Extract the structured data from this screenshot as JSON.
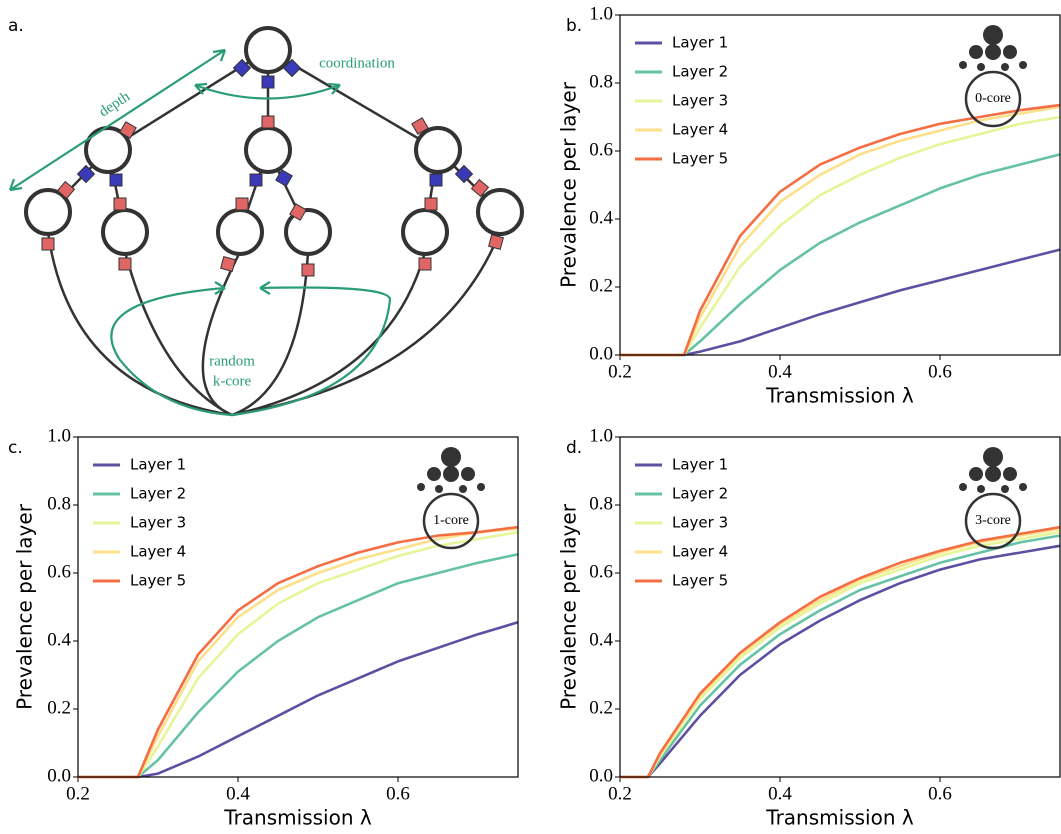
{
  "diagram": {
    "panel": "a.",
    "annotations": [
      "depth",
      "coordination",
      "random",
      "k-core"
    ]
  },
  "chart_data": [
    {
      "type": "line",
      "panel": "b.",
      "inset_label": "0-core",
      "xlabel": "Transmission λ",
      "ylabel": "Prevalence per layer",
      "xlim": [
        0.2,
        0.75
      ],
      "ylim": [
        0,
        1
      ],
      "xticks": [
        0.2,
        0.4,
        0.6
      ],
      "yticks": [
        {
          "value": 0,
          "label": "0.0"
        },
        0.2,
        0.4,
        0.6,
        0.8,
        {
          "value": 1,
          "label": "1.0"
        }
      ],
      "legend": "upper left",
      "x": [
        0.2,
        0.25,
        0.28,
        0.3,
        0.35,
        0.4,
        0.45,
        0.5,
        0.55,
        0.6,
        0.65,
        0.7,
        0.75
      ],
      "series": [
        {
          "name": "Layer 1",
          "color": "#5e4fa2",
          "values": [
            0,
            0,
            0,
            0.01,
            0.04,
            0.08,
            0.12,
            0.155,
            0.19,
            0.22,
            0.25,
            0.28,
            0.31
          ]
        },
        {
          "name": "Layer 2",
          "color": "#66c2a5",
          "values": [
            0,
            0,
            0,
            0.04,
            0.15,
            0.25,
            0.33,
            0.39,
            0.44,
            0.49,
            0.53,
            0.56,
            0.59
          ]
        },
        {
          "name": "Layer 3",
          "color": "#e6f598",
          "values": [
            0,
            0,
            0,
            0.08,
            0.26,
            0.38,
            0.47,
            0.53,
            0.58,
            0.62,
            0.65,
            0.68,
            0.7
          ]
        },
        {
          "name": "Layer 4",
          "color": "#fee08b",
          "values": [
            0,
            0,
            0,
            0.11,
            0.32,
            0.45,
            0.53,
            0.59,
            0.63,
            0.66,
            0.69,
            0.71,
            0.73
          ]
        },
        {
          "name": "Layer 5",
          "color": "#f46d43",
          "values": [
            0,
            0,
            0,
            0.13,
            0.35,
            0.48,
            0.56,
            0.61,
            0.65,
            0.68,
            0.7,
            0.72,
            0.735
          ]
        }
      ]
    },
    {
      "type": "line",
      "panel": "c.",
      "inset_label": "1-core",
      "xlabel": "Transmission λ",
      "ylabel": "Prevalence per layer",
      "xlim": [
        0.2,
        0.75
      ],
      "ylim": [
        0,
        1
      ],
      "xticks": [
        0.2,
        0.4,
        0.6
      ],
      "yticks": [
        {
          "value": 0,
          "label": "0.0"
        },
        0.2,
        0.4,
        0.6,
        0.8,
        {
          "value": 1,
          "label": "1.0"
        }
      ],
      "legend": "upper left",
      "x": [
        0.2,
        0.25,
        0.275,
        0.3,
        0.35,
        0.4,
        0.45,
        0.5,
        0.55,
        0.6,
        0.65,
        0.7,
        0.75
      ],
      "series": [
        {
          "name": "Layer 1",
          "color": "#5e4fa2",
          "values": [
            0,
            0,
            0,
            0.01,
            0.06,
            0.12,
            0.18,
            0.24,
            0.29,
            0.34,
            0.38,
            0.42,
            0.455
          ]
        },
        {
          "name": "Layer 2",
          "color": "#66c2a5",
          "values": [
            0,
            0,
            0,
            0.05,
            0.19,
            0.31,
            0.4,
            0.47,
            0.52,
            0.57,
            0.6,
            0.63,
            0.655
          ]
        },
        {
          "name": "Layer 3",
          "color": "#e6f598",
          "values": [
            0,
            0,
            0,
            0.09,
            0.29,
            0.42,
            0.51,
            0.57,
            0.61,
            0.65,
            0.68,
            0.7,
            0.72
          ]
        },
        {
          "name": "Layer 4",
          "color": "#fee08b",
          "values": [
            0,
            0,
            0,
            0.12,
            0.34,
            0.47,
            0.55,
            0.6,
            0.64,
            0.67,
            0.7,
            0.72,
            0.73
          ]
        },
        {
          "name": "Layer 5",
          "color": "#f46d43",
          "values": [
            0,
            0,
            0,
            0.14,
            0.36,
            0.49,
            0.57,
            0.62,
            0.66,
            0.69,
            0.71,
            0.72,
            0.735
          ]
        }
      ]
    },
    {
      "type": "line",
      "panel": "d.",
      "inset_label": "3-core",
      "xlabel": "Transmission λ",
      "ylabel": "Prevalence per layer",
      "xlim": [
        0.2,
        0.75
      ],
      "ylim": [
        0,
        1
      ],
      "xticks": [
        0.2,
        0.4,
        0.6
      ],
      "yticks": [
        {
          "value": 0,
          "label": "0.0"
        },
        0.2,
        0.4,
        0.6,
        0.8,
        {
          "value": 1,
          "label": "1.0"
        }
      ],
      "legend": "upper left",
      "x": [
        0.2,
        0.235,
        0.25,
        0.3,
        0.35,
        0.4,
        0.45,
        0.5,
        0.55,
        0.6,
        0.65,
        0.7,
        0.75
      ],
      "series": [
        {
          "name": "Layer 1",
          "color": "#5e4fa2",
          "values": [
            0,
            0,
            0.04,
            0.18,
            0.3,
            0.39,
            0.46,
            0.52,
            0.57,
            0.61,
            0.64,
            0.66,
            0.68
          ]
        },
        {
          "name": "Layer 2",
          "color": "#66c2a5",
          "values": [
            0,
            0,
            0.05,
            0.21,
            0.33,
            0.42,
            0.49,
            0.55,
            0.59,
            0.63,
            0.66,
            0.69,
            0.71
          ]
        },
        {
          "name": "Layer 3",
          "color": "#e6f598",
          "values": [
            0,
            0,
            0.06,
            0.23,
            0.35,
            0.44,
            0.51,
            0.57,
            0.61,
            0.65,
            0.68,
            0.7,
            0.72
          ]
        },
        {
          "name": "Layer 4",
          "color": "#fee08b",
          "values": [
            0,
            0,
            0.065,
            0.24,
            0.36,
            0.45,
            0.52,
            0.58,
            0.62,
            0.66,
            0.69,
            0.71,
            0.73
          ]
        },
        {
          "name": "Layer 5",
          "color": "#f46d43",
          "values": [
            0,
            0,
            0.07,
            0.245,
            0.365,
            0.455,
            0.53,
            0.585,
            0.63,
            0.665,
            0.695,
            0.715,
            0.735
          ]
        }
      ]
    }
  ]
}
